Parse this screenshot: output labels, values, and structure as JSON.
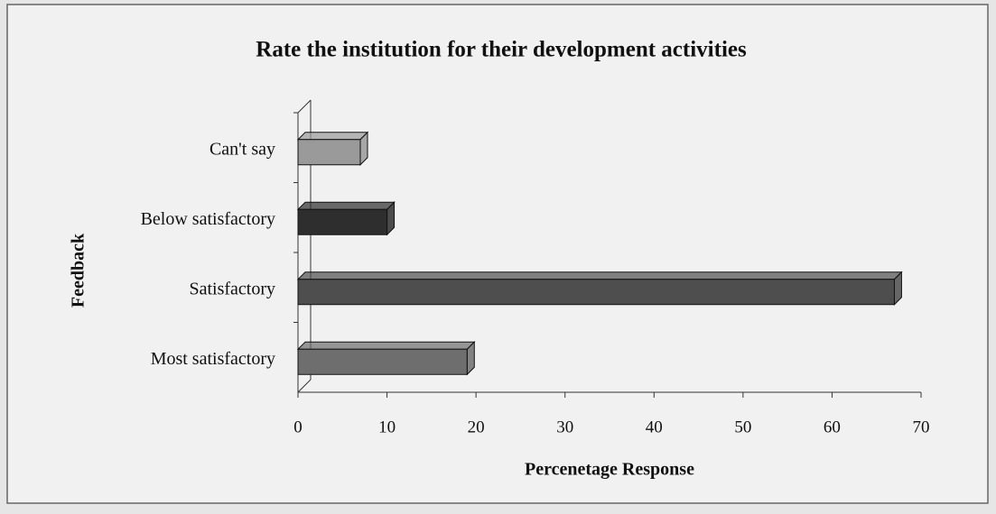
{
  "chart_data": {
    "type": "bar3d_horizontal",
    "title": "Rate the institution for their development activities",
    "xlabel": "Percenetage Response",
    "ylabel": "Feedback",
    "categories": [
      "Can't say",
      "Below satisfactory",
      "Satisfactory",
      "Most satisfactory"
    ],
    "values": [
      7,
      10,
      67,
      19
    ],
    "colors": [
      "#9a9a9a",
      "#2e2e2e",
      "#4e4e4e",
      "#6e6e6e"
    ],
    "xlim": [
      0,
      70
    ],
    "xticks": [
      0,
      10,
      20,
      30,
      40,
      50,
      60,
      70
    ]
  }
}
